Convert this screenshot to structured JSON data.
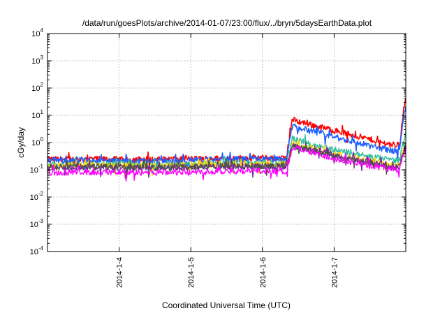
{
  "chart_data": {
    "type": "line",
    "title": "/data/run/goesPlots/archive/2014-01-07/23:00/flux/../bryn/5daysEarthData.plot",
    "xlabel": "Coordinated Universal Time (UTC)",
    "ylabel": "cGy/day",
    "y_scale": "log",
    "ylim": [
      0.0001,
      10000
    ],
    "y_ticks": [
      {
        "mantissa": "10",
        "exp": "-4"
      },
      {
        "mantissa": "10",
        "exp": "-3"
      },
      {
        "mantissa": "10",
        "exp": "-2"
      },
      {
        "mantissa": "10",
        "exp": "-1"
      },
      {
        "mantissa": "10",
        "exp": "0"
      },
      {
        "mantissa": "10",
        "exp": "1"
      },
      {
        "mantissa": "10",
        "exp": "2"
      },
      {
        "mantissa": "10",
        "exp": "3"
      },
      {
        "mantissa": "10",
        "exp": "4"
      }
    ],
    "xlim": [
      "2014-01-03 00:00",
      "2014-01-08 00:00"
    ],
    "x_ticks": [
      "2014-1-4",
      "2014-1-5",
      "2014-1-6",
      "2014-1-7"
    ],
    "grid": true,
    "x": [
      "2014-01-03 00:00",
      "2014-01-03 12:00",
      "2014-01-04 00:00",
      "2014-01-04 12:00",
      "2014-01-05 00:00",
      "2014-01-05 12:00",
      "2014-01-06 00:00",
      "2014-01-06 08:00",
      "2014-01-06 09:00",
      "2014-01-06 10:00",
      "2014-01-06 12:00",
      "2014-01-06 18:00",
      "2014-01-07 00:00",
      "2014-01-07 06:00",
      "2014-01-07 12:00",
      "2014-01-07 18:00",
      "2014-01-07 21:00",
      "2014-01-07 22:00",
      "2014-01-07 23:00",
      "2014-01-08 00:00"
    ],
    "series": [
      {
        "color": "#ff0000",
        "values": [
          0.24,
          0.25,
          0.24,
          0.24,
          0.25,
          0.26,
          0.27,
          0.26,
          1.5,
          7.0,
          6.0,
          4.0,
          2.8,
          1.9,
          1.3,
          0.9,
          0.8,
          0.9,
          10.0,
          40.0
        ]
      },
      {
        "color": "#1f5fff",
        "values": [
          0.22,
          0.22,
          0.21,
          0.21,
          0.22,
          0.24,
          0.24,
          0.24,
          1.0,
          4.2,
          3.5,
          2.3,
          1.6,
          1.1,
          0.75,
          0.55,
          0.48,
          0.55,
          6.0,
          22.0
        ]
      },
      {
        "color": "#2fbf9a",
        "values": [
          0.16,
          0.16,
          0.16,
          0.15,
          0.16,
          0.18,
          0.18,
          0.18,
          0.5,
          1.5,
          1.2,
          0.8,
          0.55,
          0.4,
          0.3,
          0.24,
          0.22,
          0.24,
          0.9,
          2.0
        ]
      },
      {
        "color": "#ffd400",
        "values": [
          0.15,
          0.15,
          0.15,
          0.14,
          0.15,
          0.16,
          0.16,
          0.16,
          0.35,
          0.95,
          0.8,
          0.55,
          0.38,
          0.28,
          0.2,
          0.16,
          0.14,
          0.15,
          0.5,
          0.75
        ]
      },
      {
        "color": "#7a1fa0",
        "values": [
          0.12,
          0.12,
          0.12,
          0.12,
          0.12,
          0.13,
          0.13,
          0.13,
          0.3,
          0.85,
          0.7,
          0.5,
          0.34,
          0.25,
          0.18,
          0.14,
          0.12,
          0.13,
          0.45,
          0.7
        ]
      },
      {
        "color": "#505050",
        "values": [
          0.13,
          0.13,
          0.13,
          0.12,
          0.13,
          0.14,
          0.14,
          0.14,
          0.3,
          0.8,
          0.68,
          0.48,
          0.33,
          0.24,
          0.17,
          0.13,
          0.12,
          0.13,
          0.42,
          0.65
        ]
      },
      {
        "color": "#ff00ff",
        "values": [
          0.08,
          0.08,
          0.08,
          0.08,
          0.08,
          0.09,
          0.09,
          0.09,
          0.22,
          0.65,
          0.55,
          0.38,
          0.26,
          0.19,
          0.14,
          0.11,
          0.1,
          0.11,
          0.35,
          0.55
        ]
      }
    ]
  }
}
